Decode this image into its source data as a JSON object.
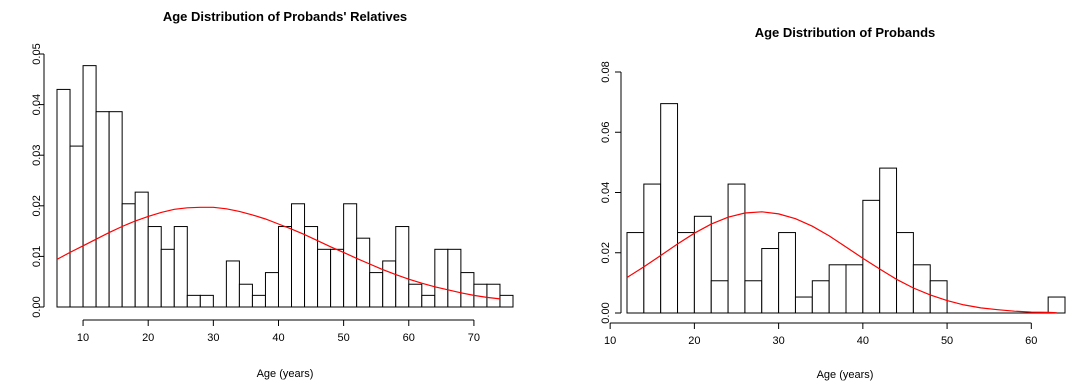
{
  "chart_data": [
    {
      "type": "bar",
      "title": "Age Distribution of Probands' Relatives",
      "xlabel": "Age (years)",
      "ylabel": "",
      "xlim": [
        5,
        77
      ],
      "ylim": [
        0,
        0.05
      ],
      "xticks": [
        "10",
        "20",
        "30",
        "40",
        "50",
        "60",
        "70"
      ],
      "yticks": [
        "0.00",
        "0.01",
        "0.02",
        "0.03",
        "0.04",
        "0.05"
      ],
      "bin_width": 2,
      "bin_start": 6,
      "values": [
        0.043,
        0.0318,
        0.0477,
        0.0386,
        0.0386,
        0.0204,
        0.0227,
        0.0159,
        0.0114,
        0.0159,
        0.0023,
        0.0023,
        0.0,
        0.0091,
        0.0045,
        0.0023,
        0.0068,
        0.0159,
        0.0204,
        0.0159,
        0.0114,
        0.0114,
        0.0204,
        0.0136,
        0.0068,
        0.0091,
        0.0159,
        0.0045,
        0.0023,
        0.0114,
        0.0114,
        0.0068,
        0.0045,
        0.0045,
        0.0023
      ],
      "curve": {
        "name": "normal density",
        "color": "#ff0000",
        "x": [
          6,
          8,
          10,
          12,
          14,
          16,
          18,
          20,
          22,
          24,
          26,
          28,
          30,
          32,
          34,
          36,
          38,
          40,
          42,
          44,
          46,
          48,
          50,
          52,
          54,
          56,
          58,
          60,
          62,
          64,
          66,
          68,
          70,
          72,
          74
        ],
        "y": [
          0.0094,
          0.0108,
          0.0121,
          0.0134,
          0.0147,
          0.0159,
          0.017,
          0.0179,
          0.0187,
          0.0193,
          0.0196,
          0.0197,
          0.0197,
          0.0194,
          0.0189,
          0.0182,
          0.0174,
          0.0164,
          0.0154,
          0.0143,
          0.0131,
          0.0119,
          0.0108,
          0.0096,
          0.0085,
          0.0074,
          0.0064,
          0.0055,
          0.0047,
          0.004,
          0.0034,
          0.0028,
          0.0023,
          0.0019,
          0.0016
        ]
      }
    },
    {
      "type": "bar",
      "title": "Age Distribution of Probands",
      "xlabel": "Age (years)",
      "ylabel": "",
      "xlim": [
        10,
        64
      ],
      "ylim": [
        0,
        0.08
      ],
      "xticks": [
        "10",
        "20",
        "30",
        "40",
        "50",
        "60"
      ],
      "yticks": [
        "0.00",
        "0.02",
        "0.04",
        "0.06",
        "0.08"
      ],
      "bin_width": 2,
      "bin_start": 12,
      "values": [
        0.0267,
        0.0428,
        0.0695,
        0.0267,
        0.0321,
        0.0107,
        0.0428,
        0.0107,
        0.0214,
        0.0267,
        0.0053,
        0.0107,
        0.016,
        0.016,
        0.0374,
        0.0481,
        0.0267,
        0.016,
        0.0107,
        0.0,
        0.0,
        0.0,
        0.0,
        0.0,
        0.0,
        0.0053
      ],
      "curve": {
        "name": "normal density",
        "color": "#ff0000",
        "x": [
          12,
          14,
          16,
          18,
          20,
          22,
          24,
          26,
          28,
          30,
          32,
          34,
          36,
          38,
          40,
          42,
          44,
          46,
          48,
          50,
          52,
          54,
          56,
          58,
          60,
          62,
          63
        ],
        "y": [
          0.0118,
          0.0153,
          0.0191,
          0.0229,
          0.0265,
          0.0295,
          0.0318,
          0.0332,
          0.0336,
          0.0329,
          0.0313,
          0.0288,
          0.0256,
          0.0219,
          0.0182,
          0.0146,
          0.0112,
          0.0083,
          0.006,
          0.0041,
          0.0027,
          0.0017,
          0.0011,
          0.0006,
          0.0003,
          0.0002,
          0.0001
        ]
      }
    }
  ]
}
